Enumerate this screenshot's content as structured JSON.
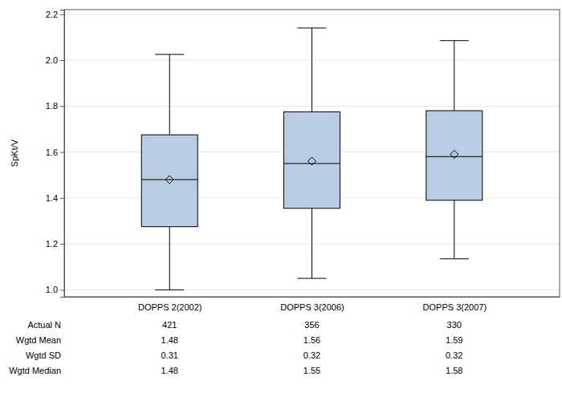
{
  "chart_data": {
    "type": "box",
    "y_label": "SpKt/V",
    "categories": [
      "DOPPS 2(2002)",
      "DOPPS 3(2006)",
      "DOPPS 3(2007)"
    ],
    "whisker_low": [
      1.0,
      1.05,
      1.135
    ],
    "q1": [
      1.275,
      1.355,
      1.39
    ],
    "q3": [
      1.675,
      1.775,
      1.78
    ],
    "whisker_high": [
      2.025,
      2.14,
      2.085
    ],
    "summary": {
      "n": {
        "label": "Actual N",
        "values": [
          421,
          356,
          330
        ]
      },
      "mean": {
        "label": "Wgtd Mean",
        "values": [
          1.48,
          1.56,
          1.59
        ]
      },
      "sd": {
        "label": "Wgtd SD",
        "values": [
          0.31,
          0.32,
          0.32
        ]
      },
      "median": {
        "label": "Wgtd Median",
        "values": [
          1.48,
          1.55,
          1.58
        ]
      }
    },
    "color": "#b8cce4",
    "ylim": [
      0.97,
      2.22
    ],
    "yticks": [
      {
        "value": 1,
        "label": "1.0"
      },
      1.2,
      1.4,
      1.6,
      1.8,
      {
        "value": 2,
        "label": "2.0"
      },
      2.2
    ],
    "grid": true
  }
}
